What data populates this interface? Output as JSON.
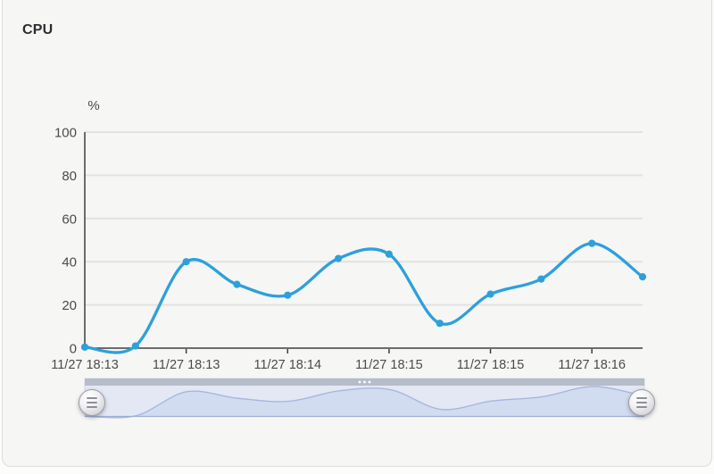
{
  "panel": {
    "title": "CPU"
  },
  "chart_data": {
    "type": "line",
    "title": "CPU",
    "xlabel": "",
    "ylabel": "%",
    "ylim": [
      0,
      100
    ],
    "y_ticks": [
      0,
      20,
      40,
      60,
      80,
      100
    ],
    "x_labels": [
      "11/27 18:13",
      "11/27 18:13",
      "11/27 18:14",
      "11/27 18:15",
      "11/27 18:15",
      "11/27 18:16"
    ],
    "x_tick_indices": [
      0,
      2,
      4,
      6,
      8,
      10
    ],
    "series": [
      {
        "name": "CPU",
        "values": [
          0.5,
          1,
          40,
          29.5,
          24.5,
          41.5,
          43.5,
          11.5,
          25,
          32,
          48.5,
          33
        ]
      }
    ],
    "line_color": "#2da0db",
    "grid": true,
    "legend": false,
    "smooth": true,
    "markers": true
  },
  "datazoom": {
    "track_color": "#e3e8f4",
    "area_color": "#d2dcf1",
    "line_color": "#a9b6dc",
    "bar_color": "#b6bdc9",
    "edge_color": "#9dafd6",
    "dot_color": "#ffffff",
    "left_handle_icon": "grip-lines-icon",
    "right_handle_icon": "grip-lines-icon",
    "move_handle_icon": "ellipsis-dots-icon"
  },
  "colors": {
    "panel_bg": "#f6f6f5",
    "axis": "#3e3e40",
    "grid_line": "#e2e2e2",
    "tick_text": "#4b4b4b"
  }
}
